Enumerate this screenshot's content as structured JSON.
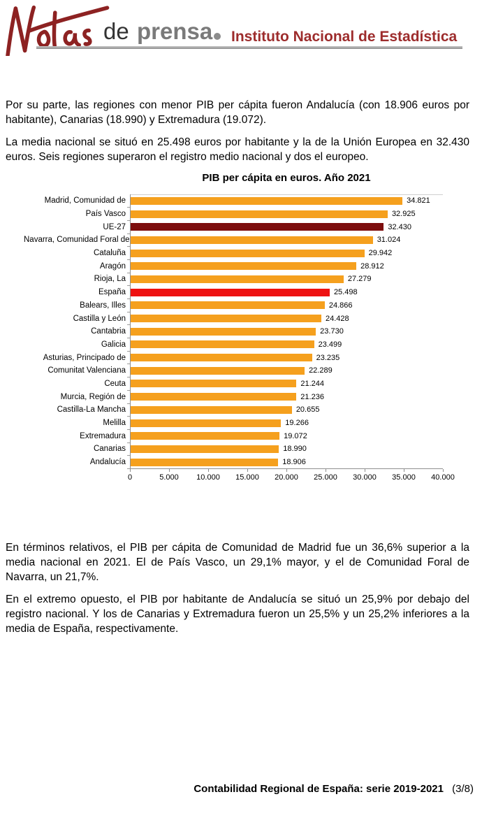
{
  "header": {
    "logo_script": "Notas",
    "logo_mid": "de",
    "logo_prensa": "prensa",
    "separator": "•",
    "institution": "Instituto Nacional de Estadística",
    "colors": {
      "script_red": "#8d2222",
      "prensa_gray": "#7a7a7a",
      "institution_red": "#9d2c2c",
      "rule_gray": "#a3a3a3"
    }
  },
  "body": {
    "paragraph_1": "Por su parte, las regiones con menor PIB per cápita fueron Andalucía (con 18.906 euros por habitante), Canarias (18.990) y Extremadura (19.072).",
    "paragraph_2": "La media nacional se situó en 25.498 euros por habitante y la de la Unión Europea en 32.430 euros. Seis regiones superaron el registro medio nacional y dos el europeo.",
    "paragraph_3": "En términos relativos, el PIB per cápita de Comunidad de Madrid fue un 36,6% superior a la media nacional en 2021. El de País Vasco, un 29,1% mayor, y el de Comunidad Foral de Navarra, un 21,7%.",
    "paragraph_4": "En el extremo opuesto, el PIB por habitante de Andalucía se situó un 25,9% por debajo del registro nacional. Y los de Canarias y Extremadura fueron un 25,5% y un 25,2% inferiores a la media de España, respectivamente."
  },
  "chart_data": {
    "type": "bar",
    "orientation": "horizontal",
    "title": "PIB per cápita en euros. Año 2021",
    "categories": [
      "Madrid, Comunidad de",
      "País Vasco",
      "UE-27",
      "Navarra, Comunidad Foral de",
      "Cataluña",
      "Aragón",
      "Rioja, La",
      "España",
      "Balears, Illes",
      "Castilla y León",
      "Cantabria",
      "Galicia",
      "Asturias, Principado de",
      "Comunitat Valenciana",
      "Ceuta",
      "Murcia, Región de",
      "Castilla-La Mancha",
      "Melilla",
      "Extremadura",
      "Canarias",
      "Andalucía"
    ],
    "values": [
      34821,
      32925,
      32430,
      31024,
      29942,
      28912,
      27279,
      25498,
      24866,
      24428,
      23730,
      23499,
      23235,
      22289,
      21244,
      21236,
      20655,
      19266,
      19072,
      18990,
      18906
    ],
    "value_labels": [
      "34.821",
      "32.925",
      "32.430",
      "31.024",
      "29.942",
      "28.912",
      "27.279",
      "25.498",
      "24.866",
      "24.428",
      "23.730",
      "23.499",
      "23.235",
      "22.289",
      "21.244",
      "21.236",
      "20.655",
      "19.266",
      "19.072",
      "18.990",
      "18.906"
    ],
    "bar_colors": [
      "orange",
      "orange",
      "eu",
      "orange",
      "orange",
      "orange",
      "orange",
      "spain",
      "orange",
      "orange",
      "orange",
      "orange",
      "orange",
      "orange",
      "orange",
      "orange",
      "orange",
      "orange",
      "orange",
      "orange",
      "orange"
    ],
    "palette": {
      "orange": "#f5a01e",
      "eu": "#7d0e0e",
      "spain": "#ee1111"
    },
    "xlabel": "",
    "ylabel": "",
    "xlim": [
      0,
      40000
    ],
    "x_ticks": [
      "0",
      "5.000",
      "10.000",
      "15.000",
      "20.000",
      "25.000",
      "30.000",
      "35.000",
      "40.000"
    ],
    "grid": false,
    "legend": false
  },
  "footer": {
    "title": "Contabilidad Regional de España: serie 2019-2021",
    "page": "(3/8)"
  }
}
